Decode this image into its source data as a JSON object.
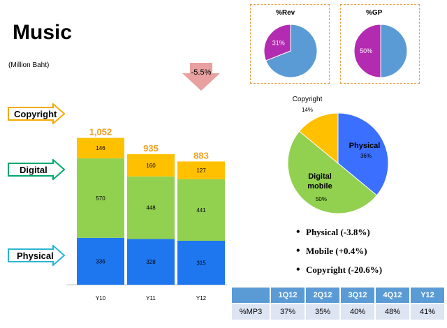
{
  "header": {
    "title": "Music",
    "unit": "(Million Baht)"
  },
  "segments": {
    "copyright": {
      "label": "Copyright",
      "color": "#f2a900"
    },
    "digital": {
      "label": "Digital",
      "color": "#00a86b"
    },
    "physical": {
      "label": "Physical",
      "color": "#29b6d1"
    }
  },
  "chart_data": [
    {
      "type": "bar",
      "stacked": true,
      "categories": [
        "Y10",
        "Y11",
        "Y12"
      ],
      "series": [
        {
          "name": "Physical",
          "values": [
            336,
            328,
            315
          ],
          "color": "#1f77f0"
        },
        {
          "name": "Digital",
          "values": [
            570,
            448,
            441
          ],
          "color": "#92d050"
        },
        {
          "name": "Copyright",
          "values": [
            146,
            160,
            127
          ],
          "color": "#ffc000"
        }
      ],
      "totals": [
        "1,052",
        "935",
        "883"
      ],
      "totals_color": "#f0a020",
      "annotation": "-5.5%",
      "unit": "(Million Baht)"
    },
    {
      "type": "pie",
      "title": "%Rev",
      "slices": [
        {
          "name": "Music",
          "value": 31,
          "label": "31%",
          "color": "#b22bb1"
        },
        {
          "name": "Other",
          "value": 69,
          "label": "",
          "color": "#5b9bd5"
        }
      ]
    },
    {
      "type": "pie",
      "title": "%GP",
      "slices": [
        {
          "name": "Music",
          "value": 50,
          "label": "50%",
          "color": "#b22bb1"
        },
        {
          "name": "Other",
          "value": 50,
          "label": "",
          "color": "#5b9bd5"
        }
      ]
    },
    {
      "type": "pie",
      "title": "",
      "slices": [
        {
          "name": "Physical",
          "value": 36,
          "label": "Physical",
          "pct": "36%",
          "color": "#3a6fff"
        },
        {
          "name": "Digital mobile",
          "value": 50,
          "label": "Digital\nmobile",
          "pct": "50%",
          "color": "#92d050"
        },
        {
          "name": "Copyright",
          "value": 14,
          "label": "Copyright",
          "pct": "14%",
          "color": "#ffc000"
        }
      ]
    }
  ],
  "bullets": [
    "Physical (-3.8%)",
    "Mobile (+0.4%)",
    "Copyright (-20.6%)"
  ],
  "mp3_table": {
    "headers": [
      "",
      "1Q12",
      "2Q12",
      "3Q12",
      "4Q12",
      "Y12"
    ],
    "row_label": "%MP3",
    "values": [
      "37%",
      "35%",
      "40%",
      "48%",
      "41%"
    ]
  }
}
